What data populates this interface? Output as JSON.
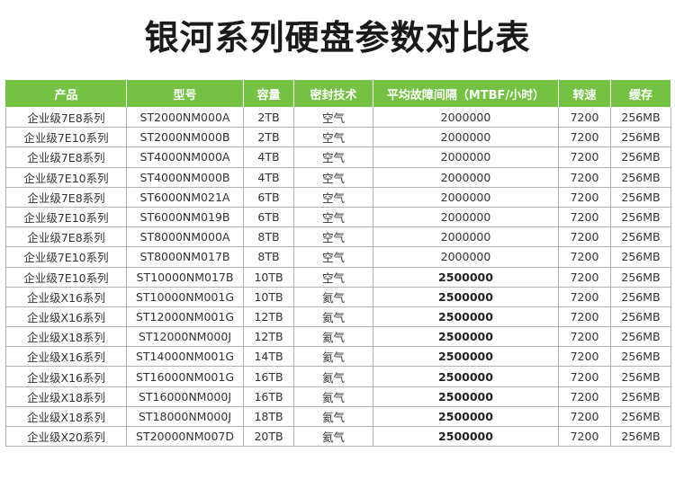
{
  "title": "银河系列硬盘参数对比表",
  "table": {
    "headers": [
      "产品",
      "型号",
      "容量",
      "密封技术",
      "平均故障间隔（MTBF/小时）",
      "转速",
      "缓存"
    ],
    "rows": [
      [
        "企业级7E8系列",
        "ST2000NM000A",
        "2TB",
        "空气",
        "2000000",
        "7200",
        "256MB"
      ],
      [
        "企业级7E10系列",
        "ST2000NM000B",
        "2TB",
        "空气",
        "2000000",
        "7200",
        "256MB"
      ],
      [
        "企业级7E8系列",
        "ST4000NM000A",
        "4TB",
        "空气",
        "2000000",
        "7200",
        "256MB"
      ],
      [
        "企业级7E10系列",
        "ST4000NM000B",
        "4TB",
        "空气",
        "2000000",
        "7200",
        "256MB"
      ],
      [
        "企业级7E8系列",
        "ST6000NM021A",
        "6TB",
        "空气",
        "2000000",
        "7200",
        "256MB"
      ],
      [
        "企业级7E10系列",
        "ST6000NM019B",
        "6TB",
        "空气",
        "2000000",
        "7200",
        "256MB"
      ],
      [
        "企业级7E8系列",
        "ST8000NM000A",
        "8TB",
        "空气",
        "2000000",
        "7200",
        "256MB"
      ],
      [
        "企业级7E10系列",
        "ST8000NM017B",
        "8TB",
        "空气",
        "2000000",
        "7200",
        "256MB"
      ],
      [
        "企业级7E10系列",
        "ST10000NM017B",
        "10TB",
        "空气",
        "2500000",
        "7200",
        "256MB"
      ],
      [
        "企业级X16系列",
        "ST10000NM001G",
        "10TB",
        "氦气",
        "2500000",
        "7200",
        "256MB"
      ],
      [
        "企业级X16系列",
        "ST12000NM001G",
        "12TB",
        "氦气",
        "2500000",
        "7200",
        "256MB"
      ],
      [
        "企业级X18系列",
        "ST12000NM000J",
        "12TB",
        "氦气",
        "2500000",
        "7200",
        "256MB"
      ],
      [
        "企业级X16系列",
        "ST14000NM001G",
        "14TB",
        "氦气",
        "2500000",
        "7200",
        "256MB"
      ],
      [
        "企业级X16系列",
        "ST16000NM001G",
        "16TB",
        "氦气",
        "2500000",
        "7200",
        "256MB"
      ],
      [
        "企业级X18系列",
        "ST16000NM000J",
        "16TB",
        "氦气",
        "2500000",
        "7200",
        "256MB"
      ],
      [
        "企业级X18系列",
        "ST18000NM000J",
        "18TB",
        "氦气",
        "2500000",
        "7200",
        "256MB"
      ],
      [
        "企业级X20系列",
        "ST20000NM007D",
        "20TB",
        "氦气",
        "2500000",
        "7200",
        "256MB"
      ]
    ]
  },
  "colors": {
    "header_bg": "#74c143",
    "header_text": "#ffffff",
    "border": "#b3b3b3"
  }
}
